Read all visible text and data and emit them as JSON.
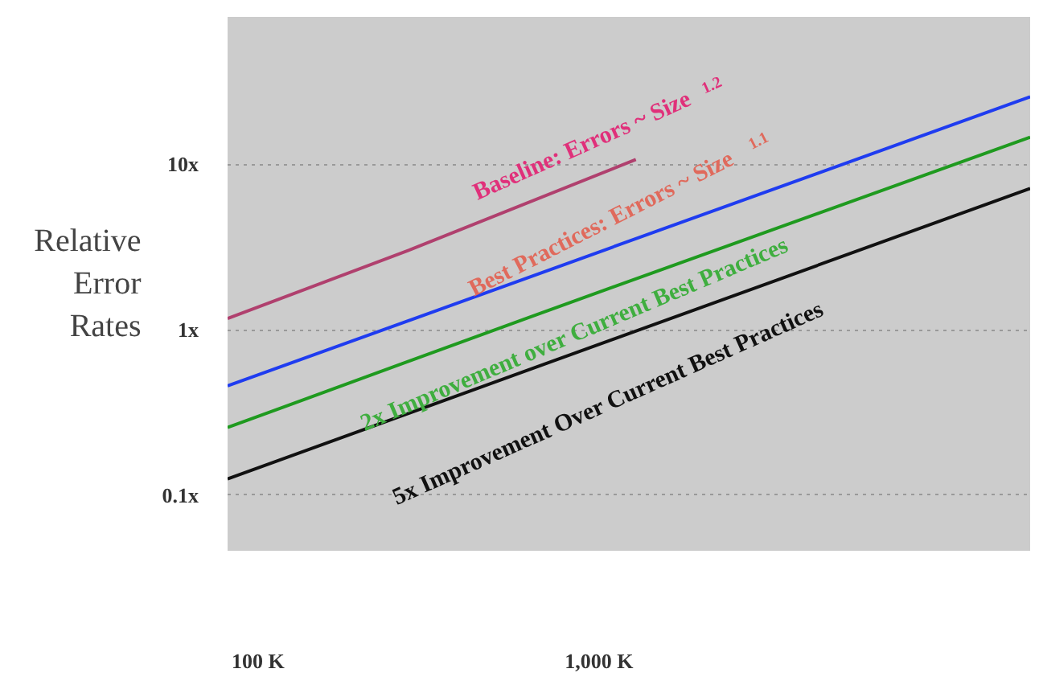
{
  "chart_data": {
    "type": "line",
    "ylabel": "Relative Error Rates",
    "series": [
      {
        "color": "#b0406e",
        "x": [
          81.4,
          281,
          1283
        ],
        "values": [
          1.17,
          3.06,
          10.7
        ]
      },
      {
        "color": "#1f3cf0",
        "x": [
          81.4,
          1307,
          18400
        ],
        "values": [
          0.457,
          3.6,
          25.6
        ]
      },
      {
        "color": "#1f9a1f",
        "x": [
          81.4,
          632,
          18400
        ],
        "values": [
          0.256,
          1.2,
          14.6
        ]
      },
      {
        "color": "#111111",
        "x": [
          81.4,
          569,
          18400
        ],
        "values": [
          0.125,
          0.535,
          7.15
        ]
      }
    ],
    "log": "xy",
    "xlim": [
      81.4,
      18400
    ],
    "ylim": [
      0.046,
      78
    ],
    "xticks": [
      {
        "value": 100,
        "label": "100 K"
      },
      {
        "value": 1000,
        "label": "1,000 K"
      }
    ],
    "yticks": [
      {
        "value": 0.1,
        "label": "0.1x"
      },
      {
        "value": 1,
        "label": "1x"
      },
      {
        "value": 10,
        "label": "10x"
      }
    ],
    "grid": "y",
    "line_style": "solid",
    "annotations": [
      "Baseline: Errors ~ Size $^{1.2}$",
      "Best Practices: Errors ~ Size $^{1.1}$",
      "2x Improvement over Current Best Practices",
      "5x Improvement Over Current Best Practices"
    ]
  }
}
